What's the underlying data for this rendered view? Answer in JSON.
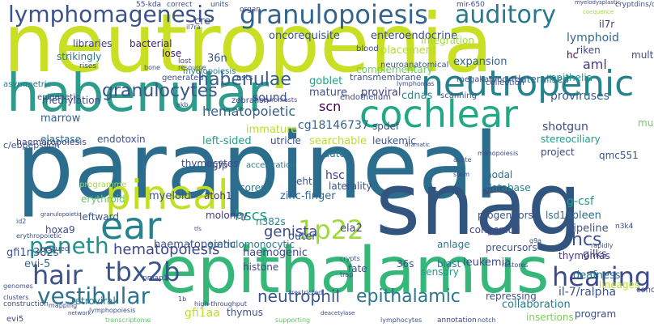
{
  "words": [
    {
      "text": "neutropenia",
      "color": "#c8df23"
    },
    {
      "text": "parapineal",
      "color": "#2c6d8e"
    },
    {
      "text": "snag",
      "color": "#31557f"
    },
    {
      "text": "epithalamus",
      "color": "#35b779"
    },
    {
      "text": "habenular",
      "color": "#2e9c8a"
    },
    {
      "text": "cochlear",
      "color": "#22a884"
    },
    {
      "text": "neutropenic",
      "color": "#25838e"
    },
    {
      "text": "granulopoiesis",
      "color": "#33648d"
    },
    {
      "text": "lymphomagenesis",
      "color": "#3b528b"
    },
    {
      "text": "auditory",
      "color": "#2a788e"
    },
    {
      "text": "ear",
      "color": "#26828e"
    },
    {
      "text": "pineal",
      "color": "#c2df23"
    },
    {
      "text": "1p22",
      "color": "#9fda3a"
    },
    {
      "text": "cochlea",
      "color": "#24878e"
    },
    {
      "text": "paneth",
      "color": "#21918c"
    },
    {
      "text": "hair",
      "color": "#3b528b"
    },
    {
      "text": "tbx2b",
      "color": "#39568c"
    },
    {
      "text": "vestibular",
      "color": "#2c738e"
    },
    {
      "text": "hearing",
      "color": "#3e4989"
    },
    {
      "text": "asymmetries",
      "color": "#2a768e"
    },
    {
      "text": "granulocytes",
      "color": "#3a548c"
    },
    {
      "text": "habenulae",
      "color": "#355f8d"
    },
    {
      "text": "hematopoietic",
      "color": "#35608d"
    },
    {
      "text": "neutrophil",
      "color": "#39568c"
    },
    {
      "text": "epithalamic",
      "color": "#2a778e"
    },
    {
      "text": "genista",
      "color": "#3e4989"
    },
    {
      "text": "hcs",
      "color": "#3b518b"
    },
    {
      "text": "hematopoiesis",
      "color": "#3f4788"
    },
    {
      "text": "hscs",
      "color": "#1f9e89"
    },
    {
      "text": "lymphoid",
      "color": "#31688e"
    },
    {
      "text": "cg18146737",
      "color": "#33638d"
    },
    {
      "text": "oncorequisite",
      "color": "#3b528b"
    },
    {
      "text": "enteroendocrine",
      "color": "#3d4e8a"
    },
    {
      "text": "bacterial",
      "color": "#482173"
    },
    {
      "text": "libraries",
      "color": "#414487"
    },
    {
      "text": "36n",
      "color": "#3a548c"
    },
    {
      "text": "placement",
      "color": "#b5de2b"
    },
    {
      "text": "riken",
      "color": "#3f4788"
    },
    {
      "text": "aml",
      "color": "#443a83"
    },
    {
      "text": "il7r",
      "color": "#453882"
    },
    {
      "text": "hc",
      "color": "#450559"
    },
    {
      "text": "lose",
      "color": "#471365"
    },
    {
      "text": "goblet",
      "color": "#1fa287"
    },
    {
      "text": "mature",
      "color": "#3b528b"
    },
    {
      "text": "expansion",
      "color": "#33638d"
    },
    {
      "text": "epithelia",
      "color": "#1f968b"
    },
    {
      "text": "multipotent",
      "color": "#3e4a89"
    },
    {
      "text": "marrow",
      "color": "#34618d"
    },
    {
      "text": "complementary",
      "color": "#6ccd5a"
    },
    {
      "text": "integration",
      "color": "#a2da37"
    },
    {
      "text": "lateralised",
      "color": "#2f6c8e"
    },
    {
      "text": "scn",
      "color": "#440154"
    },
    {
      "text": "immature",
      "color": "#b8de29"
    },
    {
      "text": "proviral",
      "color": "#424186"
    },
    {
      "text": "cdnas",
      "color": "#228c8d"
    },
    {
      "text": "proviruses",
      "color": "#355e8d"
    },
    {
      "text": "sound",
      "color": "#3b528b"
    },
    {
      "text": "left-sided",
      "color": "#1fa088"
    },
    {
      "text": "searchable",
      "color": "#bade28"
    },
    {
      "text": "shotgun",
      "color": "#3d4d8a"
    },
    {
      "text": "elastase",
      "color": "#2d718e"
    },
    {
      "text": "endotoxin",
      "color": "#3b528b"
    },
    {
      "text": "utricle",
      "color": "#3c4f8a"
    },
    {
      "text": "leukemic",
      "color": "#3a548c"
    },
    {
      "text": "stereociliary",
      "color": "#1e9b8a"
    },
    {
      "text": "aatc",
      "color": "#2a788e"
    },
    {
      "text": "project",
      "color": "#3f4889"
    },
    {
      "text": "qmc551",
      "color": "#3b528b"
    },
    {
      "text": "multilineage",
      "color": "#6ece58"
    },
    {
      "text": "gfp",
      "color": "#3e4989"
    },
    {
      "text": "myeloid",
      "color": "#3b528b"
    },
    {
      "text": "eht",
      "color": "#3a548c"
    },
    {
      "text": "hsc",
      "color": "#424186"
    },
    {
      "text": "nodal",
      "color": "#2e6e8e"
    },
    {
      "text": "database",
      "color": "#25858e"
    },
    {
      "text": "g-csf",
      "color": "#1fa088"
    },
    {
      "text": "spleen",
      "color": "#31688e"
    },
    {
      "text": "atoh1",
      "color": "#46327e"
    },
    {
      "text": "zinc-finger",
      "color": "#31688e"
    },
    {
      "text": "leftward",
      "color": "#3a548c"
    },
    {
      "text": "moloney",
      "color": "#453882"
    },
    {
      "text": "corest",
      "color": "#2a788e"
    },
    {
      "text": "n382s",
      "color": "#25858e"
    },
    {
      "text": "outer",
      "color": "#3b528b"
    },
    {
      "text": "ela2",
      "color": "#3e4989"
    },
    {
      "text": "lsd1",
      "color": "#2e6e8e"
    },
    {
      "text": "pipeline",
      "color": "#3b528b"
    },
    {
      "text": "gilks",
      "color": "#3e4989"
    },
    {
      "text": "gfi1n382s",
      "color": "#3b528b"
    },
    {
      "text": "evi-5",
      "color": "#31688e"
    },
    {
      "text": "haematopoietic",
      "color": "#3b528b"
    },
    {
      "text": "haemogenic",
      "color": "#3e4989"
    },
    {
      "text": "granulomonocytic",
      "color": "#2a788e"
    },
    {
      "text": "histone",
      "color": "#414487"
    },
    {
      "text": "blast",
      "color": "#2a788e"
    },
    {
      "text": "36s",
      "color": "#3b528b"
    },
    {
      "text": "leukemia",
      "color": "#3e4989"
    },
    {
      "text": "thymomas",
      "color": "#443983"
    },
    {
      "text": "deafness",
      "color": "#2a788e"
    },
    {
      "text": "il-7/ralpha",
      "color": "#3b528b"
    },
    {
      "text": "lineages",
      "color": "#b5de2b"
    },
    {
      "text": "gfi1aa",
      "color": "#c2df23"
    },
    {
      "text": "thymus",
      "color": "#3b528b"
    },
    {
      "text": "collaboration",
      "color": "#2a788e"
    },
    {
      "text": "insertions",
      "color": "#7ad151"
    },
    {
      "text": "program",
      "color": "#3b528b"
    },
    {
      "text": "evi5",
      "color": "#3e4989"
    },
    {
      "text": "retroviral",
      "color": "#2a788e"
    },
    {
      "text": "fate",
      "color": "#3b528b"
    },
    {
      "text": "sensory",
      "color": "#1f9e89"
    },
    {
      "text": "precursors",
      "color": "#3b528b"
    },
    {
      "text": "anlage",
      "color": "#2a788e"
    },
    {
      "text": "congenital",
      "color": "#3e4989"
    },
    {
      "text": "progenitors",
      "color": "#3b528b"
    },
    {
      "text": "thymocytes",
      "color": "#3e4989"
    },
    {
      "text": "erythroid",
      "color": "#5ec962"
    },
    {
      "text": "repressing",
      "color": "#3b528b"
    },
    {
      "text": "strikingly",
      "color": "#2a788e"
    },
    {
      "text": "methylation",
      "color": "#3e4989"
    },
    {
      "text": "epigenetic",
      "color": "#3b528b"
    },
    {
      "text": "haematopoiesis",
      "color": "#3e4989"
    },
    {
      "text": "c/ebpepsilon",
      "color": "#3b528b"
    },
    {
      "text": "asymmetric",
      "color": "#2a788e"
    },
    {
      "text": "hoxa9",
      "color": "#3e4989"
    },
    {
      "text": "programme",
      "color": "#9fda3a"
    },
    {
      "text": "laterality",
      "color": "#3b528b"
    },
    {
      "text": "acceleration",
      "color": "#2a788e"
    },
    {
      "text": "spdef",
      "color": "#3e4989"
    },
    {
      "text": "transmembrane",
      "color": "#3b528b"
    },
    {
      "text": "megakaryocytes",
      "color": "#3e4989"
    },
    {
      "text": "collection",
      "color": "#3b528b"
    },
    {
      "text": "lymphomas",
      "color": "#3e4989"
    },
    {
      "text": "ests",
      "color": "#3b528b"
    },
    {
      "text": "myelopoiesis",
      "color": "#2a788e"
    },
    {
      "text": "endothelium",
      "color": "#3e4989"
    },
    {
      "text": "scanning",
      "color": "#3b528b"
    },
    {
      "text": "blood",
      "color": "#3e4989"
    },
    {
      "text": "neuroanatomical",
      "color": "#3b528b"
    },
    {
      "text": "mir-650",
      "color": "#3e4989"
    },
    {
      "text": "units",
      "color": "#3b528b"
    },
    {
      "text": "organ",
      "color": "#3e4989"
    },
    {
      "text": "correct",
      "color": "#3b528b"
    },
    {
      "text": "55-kda",
      "color": "#3e4989"
    },
    {
      "text": "cryptdins/defensins",
      "color": "#3b528b"
    },
    {
      "text": "myelodysplastic",
      "color": "#3e4989"
    },
    {
      "text": "coequence",
      "color": "#9fda3a"
    },
    {
      "text": "generated",
      "color": "#3b528b"
    },
    {
      "text": "rises",
      "color": "#3e4989"
    },
    {
      "text": "bone",
      "color": "#3b528b"
    },
    {
      "text": "lost",
      "color": "#3e4989"
    },
    {
      "text": "resource",
      "color": "#3b528b"
    },
    {
      "text": "neuromasts",
      "color": "#3e4989"
    },
    {
      "text": "akb",
      "color": "#3b528b"
    },
    {
      "text": "cre",
      "color": "#3e4989"
    },
    {
      "text": "il7ra",
      "color": "#3b528b"
    },
    {
      "text": "zebrafish",
      "color": "#3e4989"
    },
    {
      "text": "genomes",
      "color": "#3b528b"
    },
    {
      "text": "clusters",
      "color": "#3e4989"
    },
    {
      "text": "construction",
      "color": "#3b528b"
    },
    {
      "text": "rescued",
      "color": "#3e4989"
    },
    {
      "text": "erythropoietic",
      "color": "#3b528b"
    },
    {
      "text": "granulopoietic",
      "color": "#3e4989"
    },
    {
      "text": "id2",
      "color": "#3b528b"
    },
    {
      "text": "pmap1",
      "color": "#3e4989"
    },
    {
      "text": "mapping",
      "color": "#3b528b"
    },
    {
      "text": "network",
      "color": "#3e4989"
    },
    {
      "text": "lymphopoiesis",
      "color": "#3b528b"
    },
    {
      "text": "transcriptome",
      "color": "#5ec962"
    },
    {
      "text": "lymphocytes",
      "color": "#3b528b"
    },
    {
      "text": "supporting",
      "color": "#5ec962"
    },
    {
      "text": "annotation",
      "color": "#3e4989"
    },
    {
      "text": "notch",
      "color": "#3b528b"
    },
    {
      "text": "deacetylase",
      "color": "#3e4989"
    },
    {
      "text": "restricted",
      "color": "#3b528b"
    },
    {
      "text": "trap",
      "color": "#3e4989"
    },
    {
      "text": "crypts",
      "color": "#3b528b"
    },
    {
      "text": "restores",
      "color": "#3e4989"
    },
    {
      "text": "rapidly",
      "color": "#3b528b"
    },
    {
      "text": "n3k4",
      "color": "#3e4989"
    },
    {
      "text": "g9a",
      "color": "#3b528b"
    },
    {
      "text": "conclude",
      "color": "#3e4989"
    },
    {
      "text": "locus",
      "color": "#3b528b"
    },
    {
      "text": "stem",
      "color": "#3e4989"
    },
    {
      "text": "acute",
      "color": "#3b528b"
    },
    {
      "text": "monopoiesis",
      "color": "#3e4989"
    },
    {
      "text": "dramatic",
      "color": "#3b528b"
    },
    {
      "text": "high-throughput",
      "color": "#3e4989"
    },
    {
      "text": "tfs",
      "color": "#3b528b"
    },
    {
      "text": "1b",
      "color": "#3e4989"
    }
  ]
}
